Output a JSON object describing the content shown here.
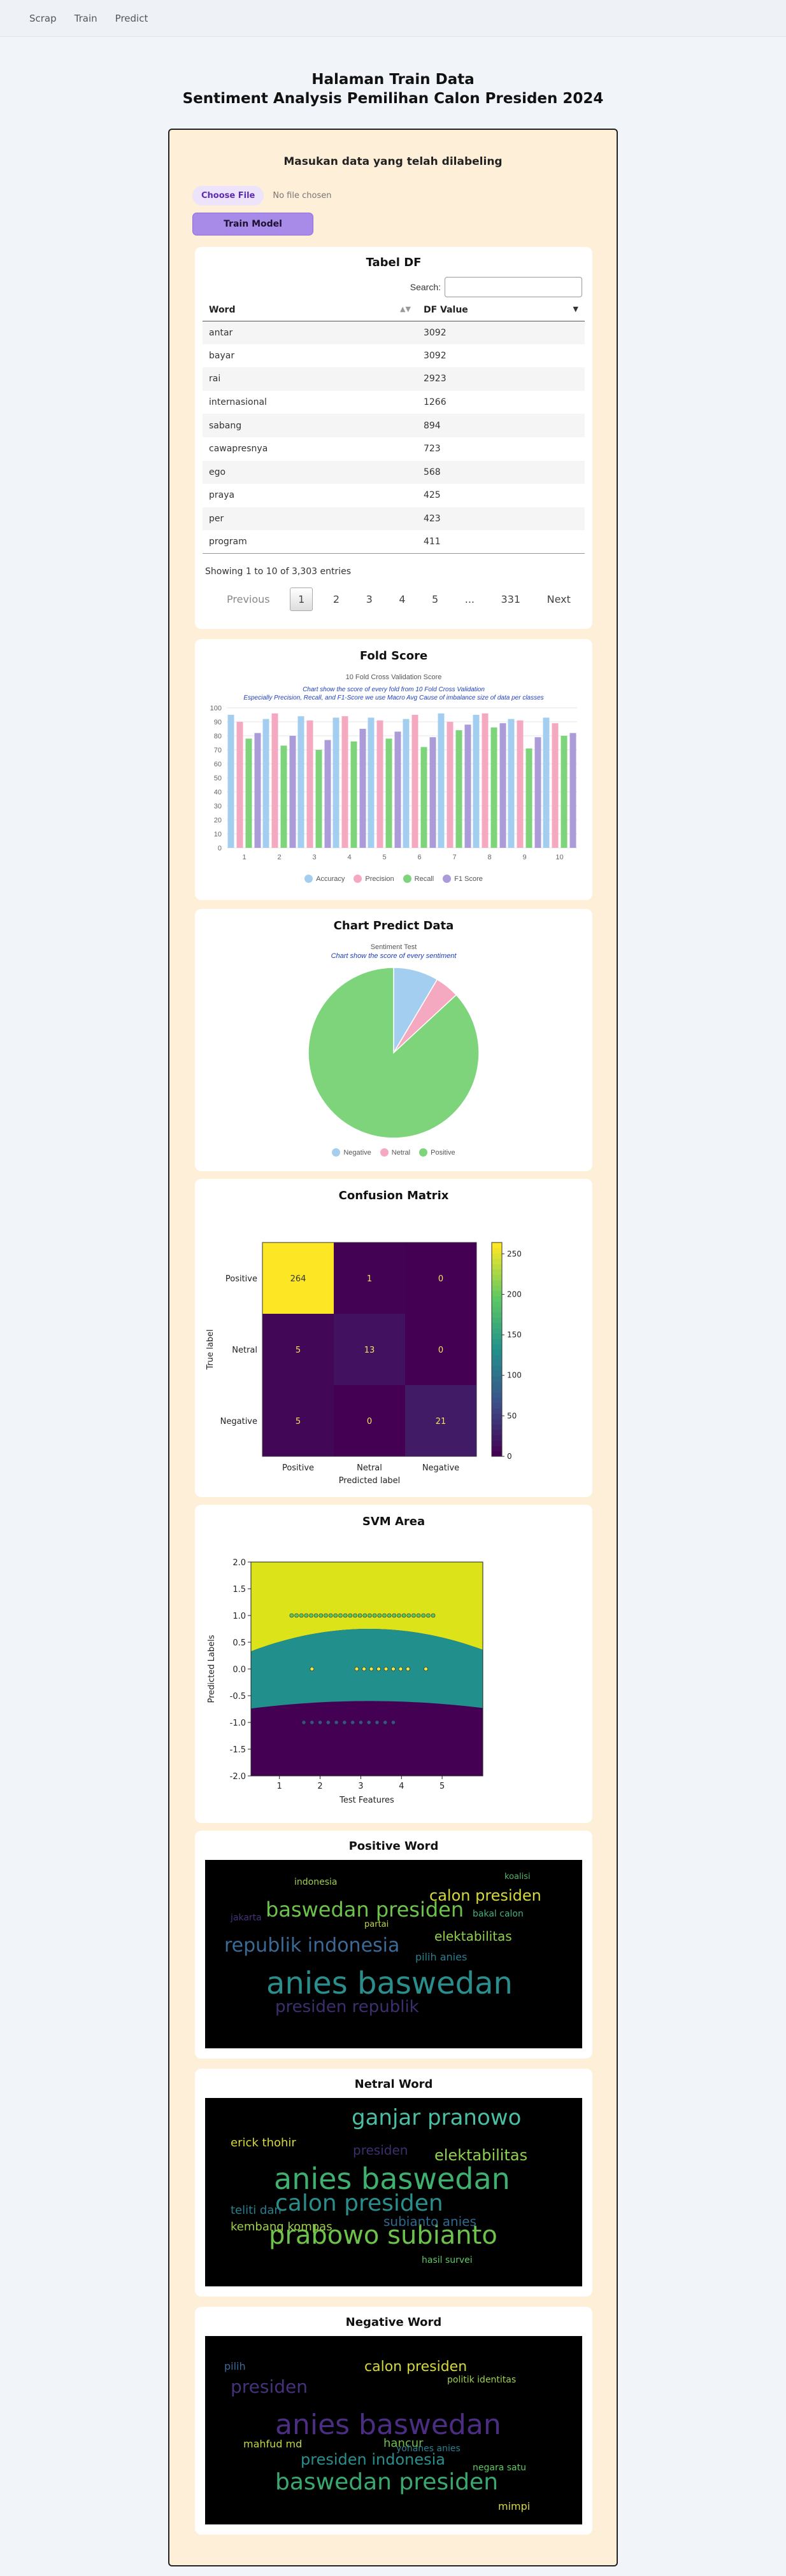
{
  "nav": {
    "items": [
      "Scrap",
      "Train",
      "Predict"
    ]
  },
  "header": {
    "line1": "Halaman Train Data",
    "line2": "Sentiment Analysis Pemilihan Calon Presiden 2024"
  },
  "upload": {
    "heading": "Masukan data yang telah dilabeling",
    "choose_label": "Choose File",
    "no_file": "No file chosen",
    "train_label": "Train Model"
  },
  "df_table": {
    "title": "Tabel DF",
    "search_label": "Search:",
    "columns": [
      "Word",
      "DF Value"
    ],
    "rows": [
      [
        "antar",
        "3092"
      ],
      [
        "bayar",
        "3092"
      ],
      [
        "rai",
        "2923"
      ],
      [
        "internasional",
        "1266"
      ],
      [
        "sabang",
        "894"
      ],
      [
        "cawapresnya",
        "723"
      ],
      [
        "ego",
        "568"
      ],
      [
        "praya",
        "425"
      ],
      [
        "per",
        "423"
      ],
      [
        "program",
        "411"
      ]
    ],
    "info": "Showing 1 to 10 of 3,303 entries",
    "pager": [
      "Previous",
      "1",
      "2",
      "3",
      "4",
      "5",
      "...",
      "331",
      "Next"
    ]
  },
  "fold": {
    "card_title": "Fold Score",
    "subtitle1": "Chart show the score of every fold from 10 Fold Cross Validation",
    "subtitle2": "Especially Precision, Recall, and F1-Score we use Macro Avg Cause of imbalance size of data per classes",
    "colors": [
      "#a4ceef",
      "#f5a9c0",
      "#7ed47a",
      "#ab9bd8"
    ],
    "chart_data": {
      "type": "bar",
      "title": "10 Fold Cross Validation Score",
      "categories": [
        "1",
        "2",
        "3",
        "4",
        "5",
        "6",
        "7",
        "8",
        "9",
        "10"
      ],
      "ylim": [
        0,
        100
      ],
      "yticks": [
        0,
        10,
        20,
        30,
        40,
        50,
        60,
        70,
        80,
        90,
        100
      ],
      "series": [
        {
          "name": "Accuracy",
          "values": [
            95,
            92,
            94,
            93,
            93,
            92,
            96,
            95,
            92,
            93
          ]
        },
        {
          "name": "Precision",
          "values": [
            90,
            96,
            91,
            94,
            91,
            95,
            90,
            96,
            91,
            89
          ]
        },
        {
          "name": "Recall",
          "values": [
            78,
            73,
            70,
            76,
            78,
            72,
            84,
            86,
            71,
            80
          ]
        },
        {
          "name": "F1 Score",
          "values": [
            82,
            80,
            77,
            85,
            83,
            79,
            88,
            89,
            79,
            82
          ]
        }
      ]
    }
  },
  "predict": {
    "card_title": "Chart Predict Data",
    "subtitle": "Chart show the score of every sentiment",
    "colors": [
      "#a4ceef",
      "#f5a9c0",
      "#7ed47a"
    ],
    "chart_data": {
      "type": "pie",
      "title": "Sentiment Test",
      "labels": [
        "Negative",
        "Netral",
        "Positive"
      ],
      "values": [
        26,
        14,
        265
      ]
    }
  },
  "confusion": {
    "card_title": "Confusion Matrix",
    "chart_data": {
      "type": "heatmap",
      "xlabel": "Predicted label",
      "ylabel": "True label",
      "x_categories": [
        "Positive",
        "Netral",
        "Negative"
      ],
      "y_categories": [
        "Positive",
        "Netral",
        "Negative"
      ],
      "values": [
        [
          264,
          1,
          0
        ],
        [
          5,
          13,
          0
        ],
        [
          5,
          0,
          21
        ]
      ],
      "colorbar_ticks": [
        0,
        50,
        100,
        150,
        200,
        250
      ]
    }
  },
  "svm": {
    "card_title": "SVM Area",
    "chart_data": {
      "type": "scatter",
      "xlabel": "Test Features",
      "ylabel": "Predicted Labels",
      "xticks": [
        1,
        2,
        3,
        4,
        5
      ],
      "yticks": [
        "-2.0",
        "-1.5",
        "-1.0",
        "-0.5",
        "0.0",
        "0.5",
        "1.0",
        "1.5",
        "2.0"
      ],
      "xlim": [
        0.3,
        6.0
      ],
      "ylim": [
        -2.0,
        2.0
      ],
      "classes": [
        -1,
        0,
        1
      ]
    }
  },
  "wordclouds": [
    {
      "card_title": "Positive Word"
    },
    {
      "card_title": "Netral Word"
    },
    {
      "card_title": "Negative Word"
    }
  ]
}
